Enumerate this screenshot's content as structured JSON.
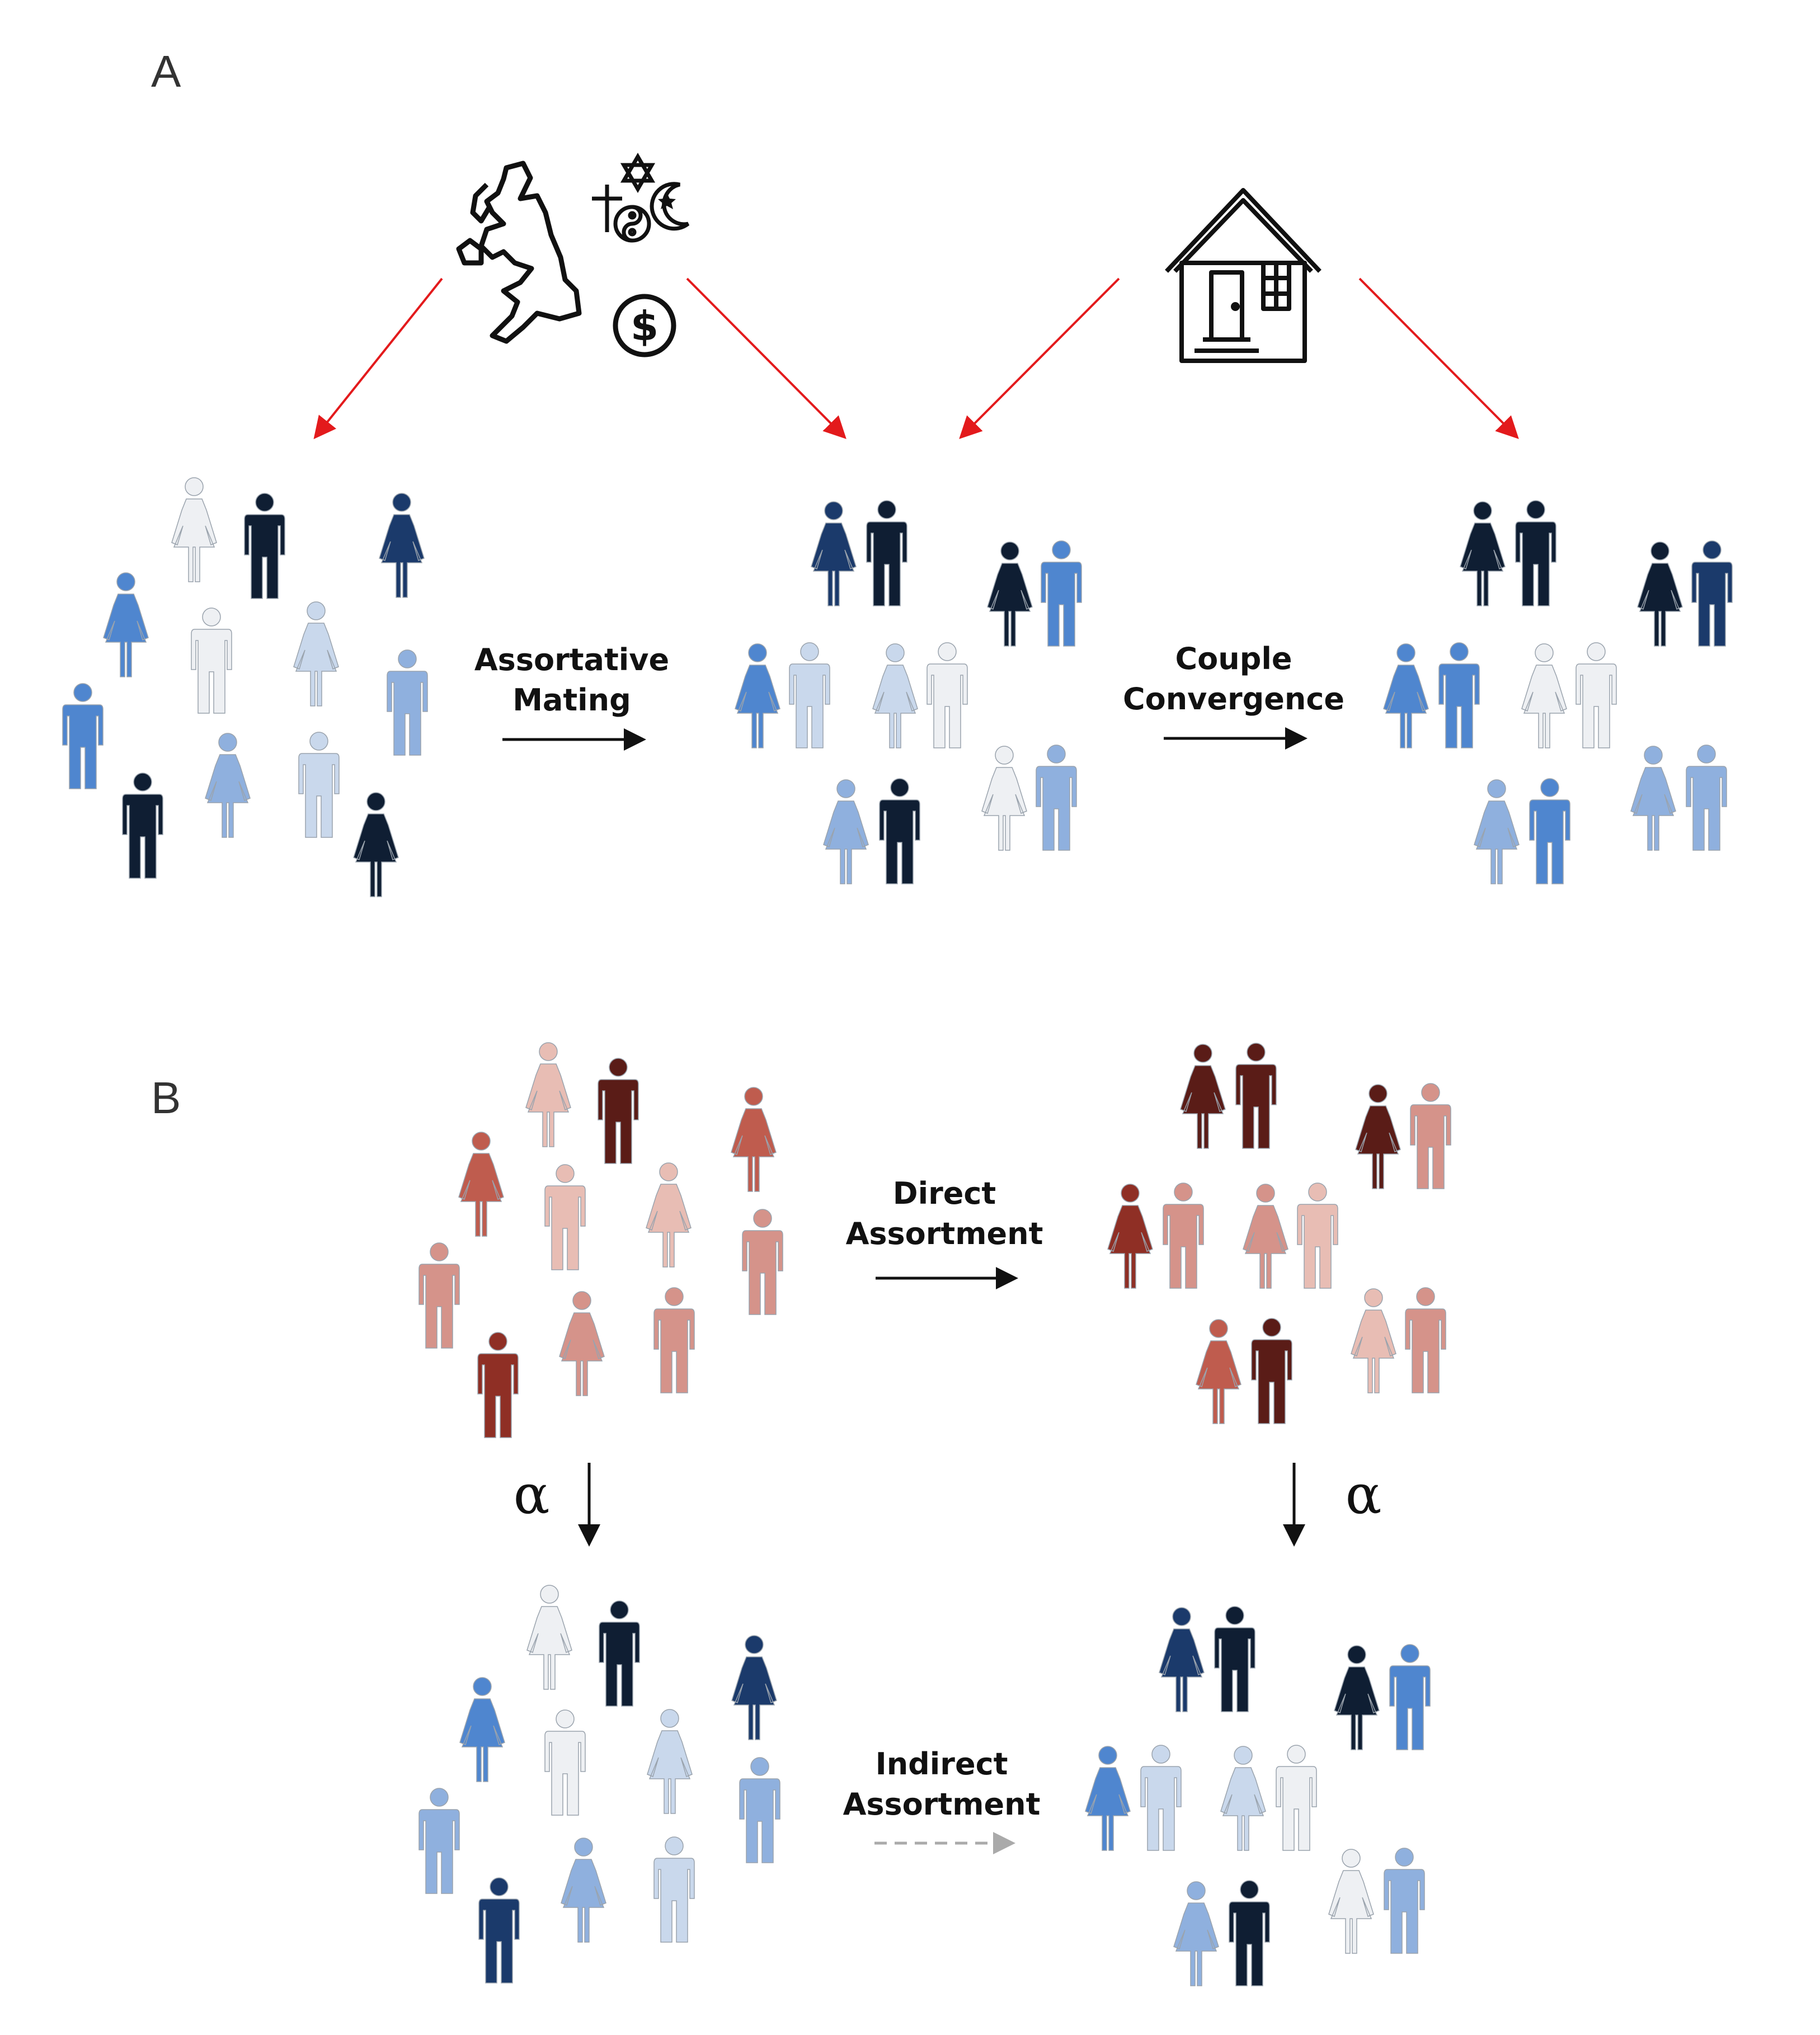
{
  "panels": {
    "a": {
      "letter": "A"
    },
    "b": {
      "letter": "B"
    }
  },
  "labels": {
    "assortative_l1": "Assortative",
    "assortative_l2": "Mating",
    "couple_l1": "Couple",
    "couple_l2": "Convergence",
    "direct_l1": "Direct",
    "direct_l2": "Assortment",
    "indirect_l1": "Indirect",
    "indirect_l2": "Assortment",
    "alpha": "α"
  },
  "icons": [
    "uk-map-icon",
    "religion-symbols-icon",
    "dollar-icon",
    "house-icon"
  ],
  "colors": {
    "red_arrow": "#e31a1c",
    "black_arrow": "#111111",
    "dashed_arrow": "#aaaaaa",
    "blue": [
      "#eef0f3",
      "#c9d8ec",
      "#8fb0de",
      "#4f86cf",
      "#1b3a6b",
      "#0f1e33"
    ],
    "red": [
      "#f6e6e2",
      "#e8bdb4",
      "#d5938a",
      "#bf5c4e",
      "#8f2f25",
      "#5a1c17"
    ]
  },
  "crowds": {
    "a_scatter": [
      {
        "g": "f",
        "c": 0
      },
      {
        "g": "m",
        "c": 5
      },
      {
        "g": "f",
        "c": 4
      },
      {
        "g": "f",
        "c": 3
      },
      {
        "g": "m",
        "c": 0
      },
      {
        "g": "f",
        "c": 1
      },
      {
        "g": "m",
        "c": 3
      },
      {
        "g": "m",
        "c": 2
      },
      {
        "g": "m",
        "c": 5
      },
      {
        "g": "f",
        "c": 2
      },
      {
        "g": "m",
        "c": 1
      },
      {
        "g": "f",
        "c": 5
      }
    ],
    "a_mated": [
      {
        "g": "f",
        "c": 4
      },
      {
        "g": "m",
        "c": 5
      },
      {
        "g": "f",
        "c": 5
      },
      {
        "g": "m",
        "c": 3
      },
      {
        "g": "f",
        "c": 3
      },
      {
        "g": "m",
        "c": 1
      },
      {
        "g": "f",
        "c": 1
      },
      {
        "g": "m",
        "c": 0
      },
      {
        "g": "f",
        "c": 2
      },
      {
        "g": "m",
        "c": 5
      },
      {
        "g": "f",
        "c": 0
      },
      {
        "g": "m",
        "c": 2
      }
    ],
    "a_converged": [
      {
        "g": "f",
        "c": 5
      },
      {
        "g": "m",
        "c": 5
      },
      {
        "g": "f",
        "c": 5
      },
      {
        "g": "m",
        "c": 4
      },
      {
        "g": "f",
        "c": 3
      },
      {
        "g": "m",
        "c": 3
      },
      {
        "g": "f",
        "c": 0
      },
      {
        "g": "m",
        "c": 0
      },
      {
        "g": "f",
        "c": 2
      },
      {
        "g": "m",
        "c": 3
      },
      {
        "g": "f",
        "c": 2
      },
      {
        "g": "m",
        "c": 2
      }
    ],
    "b_scatter": [
      {
        "g": "f",
        "c": 1
      },
      {
        "g": "m",
        "c": 5
      },
      {
        "g": "f",
        "c": 3
      },
      {
        "g": "f",
        "c": 3
      },
      {
        "g": "m",
        "c": 1
      },
      {
        "g": "f",
        "c": 1
      },
      {
        "g": "m",
        "c": 2
      },
      {
        "g": "m",
        "c": 2
      },
      {
        "g": "m",
        "c": 4
      },
      {
        "g": "f",
        "c": 2
      },
      {
        "g": "m",
        "c": 2
      },
      {
        "g": "m",
        "c": 1
      }
    ],
    "b_mated": [
      {
        "g": "f",
        "c": 5
      },
      {
        "g": "m",
        "c": 5
      },
      {
        "g": "f",
        "c": 5
      },
      {
        "g": "m",
        "c": 2
      },
      {
        "g": "f",
        "c": 4
      },
      {
        "g": "m",
        "c": 2
      },
      {
        "g": "f",
        "c": 2
      },
      {
        "g": "m",
        "c": 1
      },
      {
        "g": "f",
        "c": 3
      },
      {
        "g": "m",
        "c": 5
      },
      {
        "g": "f",
        "c": 1
      },
      {
        "g": "m",
        "c": 2
      }
    ],
    "b_indirect_scatter": [
      {
        "g": "f",
        "c": 0
      },
      {
        "g": "m",
        "c": 5
      },
      {
        "g": "f",
        "c": 4
      },
      {
        "g": "f",
        "c": 3
      },
      {
        "g": "m",
        "c": 0
      },
      {
        "g": "f",
        "c": 1
      },
      {
        "g": "m",
        "c": 2
      },
      {
        "g": "m",
        "c": 2
      },
      {
        "g": "m",
        "c": 4
      },
      {
        "g": "f",
        "c": 2
      },
      {
        "g": "m",
        "c": 1
      },
      {
        "g": "m",
        "c": 3
      }
    ],
    "b_indirect_mated": [
      {
        "g": "f",
        "c": 4
      },
      {
        "g": "m",
        "c": 5
      },
      {
        "g": "f",
        "c": 5
      },
      {
        "g": "m",
        "c": 3
      },
      {
        "g": "f",
        "c": 3
      },
      {
        "g": "m",
        "c": 1
      },
      {
        "g": "f",
        "c": 1
      },
      {
        "g": "m",
        "c": 0
      },
      {
        "g": "f",
        "c": 2
      },
      {
        "g": "m",
        "c": 5
      },
      {
        "g": "f",
        "c": 0
      },
      {
        "g": "m",
        "c": 2
      }
    ]
  }
}
